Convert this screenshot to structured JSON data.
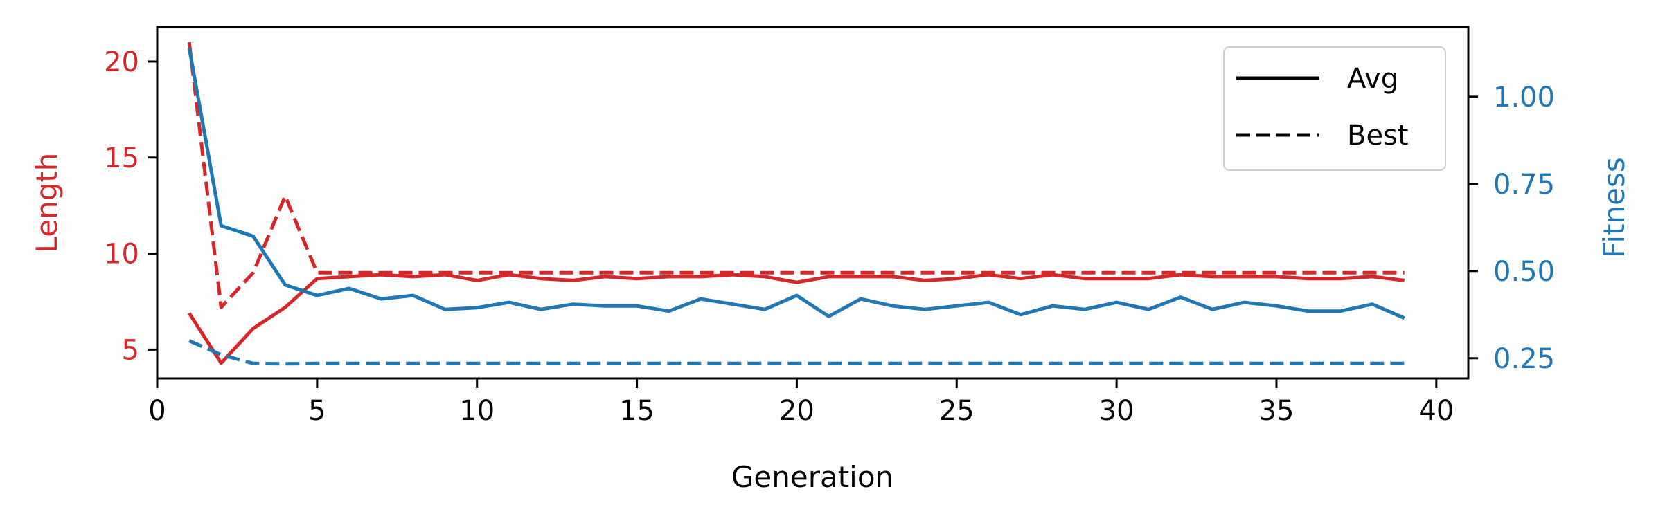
{
  "chart_data": {
    "type": "line",
    "title": "",
    "xlabel": "Generation",
    "ylabel_left": "Length",
    "ylabel_right": "Fitness",
    "xlim": [
      0,
      41
    ],
    "ylim_left": [
      3.5,
      21.8
    ],
    "ylim_right": [
      0.192,
      1.2
    ],
    "x_ticks": [
      0,
      5,
      10,
      15,
      20,
      25,
      30,
      35,
      40
    ],
    "y_left_ticks": [
      5,
      10,
      15,
      20
    ],
    "y_right_ticks": [
      0.25,
      0.5,
      0.75,
      1.0
    ],
    "y_right_tick_labels": [
      "0.25",
      "0.50",
      "0.75",
      "1.00"
    ],
    "grid": false,
    "legend": {
      "placement": "top-right",
      "entries": [
        {
          "label": "Avg",
          "style": "solid"
        },
        {
          "label": "Best",
          "style": "dashed"
        }
      ]
    },
    "colors": {
      "length": "#d62728",
      "fitness": "#1f77b4"
    },
    "x": [
      1,
      2,
      3,
      4,
      5,
      6,
      7,
      8,
      9,
      10,
      11,
      12,
      13,
      14,
      15,
      16,
      17,
      18,
      19,
      20,
      21,
      22,
      23,
      24,
      25,
      26,
      27,
      28,
      29,
      30,
      31,
      32,
      33,
      34,
      35,
      36,
      37,
      38,
      39
    ],
    "series": [
      {
        "axis": "left",
        "metric": "Length",
        "kind": "Avg",
        "values": [
          6.9,
          4.3,
          6.1,
          7.2,
          8.7,
          8.8,
          8.9,
          8.8,
          8.9,
          8.6,
          8.9,
          8.7,
          8.6,
          8.8,
          8.7,
          8.8,
          8.8,
          8.9,
          8.8,
          8.5,
          8.8,
          8.8,
          8.8,
          8.6,
          8.7,
          8.9,
          8.7,
          8.9,
          8.7,
          8.7,
          8.7,
          8.9,
          8.8,
          8.8,
          8.8,
          8.7,
          8.7,
          8.8,
          8.6
        ]
      },
      {
        "axis": "left",
        "metric": "Length",
        "kind": "Best",
        "values": [
          21,
          7.2,
          9.0,
          13,
          9.0,
          9.0,
          9.0,
          9.0,
          9.0,
          9.0,
          9.0,
          9.0,
          9.0,
          9.0,
          9.0,
          9.0,
          9.0,
          9.0,
          9.0,
          9.0,
          9.0,
          9.0,
          9.0,
          9.0,
          9.0,
          9.0,
          9.0,
          9.0,
          9.0,
          9.0,
          9.0,
          9.0,
          9.0,
          9.0,
          9.0,
          9.0,
          9.0,
          9.0,
          9.0
        ]
      },
      {
        "axis": "right",
        "metric": "Fitness",
        "kind": "Avg",
        "values": [
          1.14,
          0.63,
          0.6,
          0.46,
          0.43,
          0.45,
          0.42,
          0.43,
          0.39,
          0.395,
          0.41,
          0.39,
          0.405,
          0.4,
          0.4,
          0.385,
          0.42,
          0.405,
          0.39,
          0.43,
          0.37,
          0.42,
          0.4,
          0.39,
          0.4,
          0.41,
          0.375,
          0.4,
          0.39,
          0.41,
          0.39,
          0.425,
          0.39,
          0.41,
          0.4,
          0.385,
          0.385,
          0.405,
          0.365
        ]
      },
      {
        "axis": "right",
        "metric": "Fitness",
        "kind": "Best",
        "values": [
          0.3,
          0.26,
          0.235,
          0.234,
          0.235,
          0.235,
          0.235,
          0.235,
          0.235,
          0.235,
          0.235,
          0.235,
          0.235,
          0.235,
          0.235,
          0.235,
          0.235,
          0.235,
          0.235,
          0.235,
          0.235,
          0.235,
          0.235,
          0.235,
          0.235,
          0.235,
          0.235,
          0.235,
          0.235,
          0.235,
          0.235,
          0.235,
          0.235,
          0.235,
          0.235,
          0.235,
          0.235,
          0.235,
          0.235
        ]
      }
    ]
  }
}
